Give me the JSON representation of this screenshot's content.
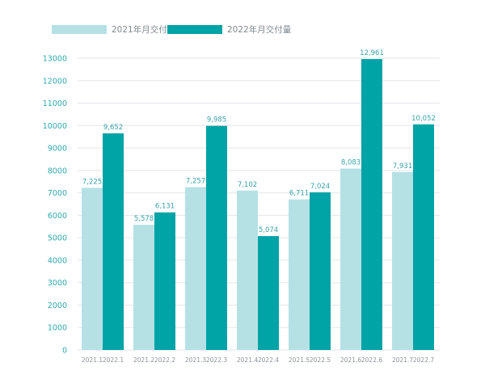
{
  "chart_data": {
    "type": "bar",
    "legend": {
      "position": "top-left"
    },
    "ylim": [
      0,
      13000
    ],
    "yticks": [
      "0",
      "1000",
      "2000",
      "3000",
      "4000",
      "5000",
      "6000",
      "7000",
      "8000",
      "9000",
      "10000",
      "11000",
      "12000",
      "13000"
    ],
    "grid": true,
    "colors": {
      "2021": "#b5e1e5",
      "2022": "#00a3a6"
    },
    "groups": [
      {
        "labels": [
          "2021.1",
          "2022.1"
        ],
        "values": [
          7225,
          9652
        ],
        "data_labels": [
          "7,225",
          "9,652"
        ]
      },
      {
        "labels": [
          "2021.2",
          "2022.2"
        ],
        "values": [
          5578,
          6131
        ],
        "data_labels": [
          "5,578",
          "6,131"
        ]
      },
      {
        "labels": [
          "2021.3",
          "2022.3"
        ],
        "values": [
          7257,
          9985
        ],
        "data_labels": [
          "7,257",
          "9,985"
        ]
      },
      {
        "labels": [
          "2021.4",
          "2022.4"
        ],
        "values": [
          7102,
          5074
        ],
        "data_labels": [
          "7,102",
          "5,074"
        ]
      },
      {
        "labels": [
          "2021.5",
          "2022.5"
        ],
        "values": [
          6711,
          7024
        ],
        "data_labels": [
          "6,711",
          "7,024"
        ]
      },
      {
        "labels": [
          "2021.6",
          "2022.6"
        ],
        "values": [
          8083,
          12961
        ],
        "data_labels": [
          "8,083",
          "12,961"
        ]
      },
      {
        "labels": [
          "2021.7",
          "2022.7"
        ],
        "values": [
          7931,
          10052
        ],
        "data_labels": [
          "7,931",
          "10,052"
        ]
      }
    ],
    "series": [
      {
        "name": "2021年月交付量"
      },
      {
        "name": "2022年月交付量"
      }
    ]
  }
}
